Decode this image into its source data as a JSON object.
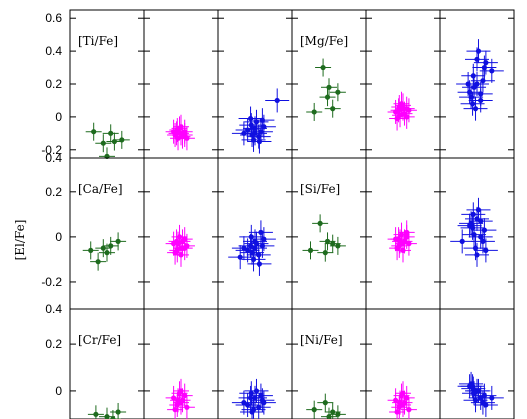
{
  "figure": {
    "ylabel": "[El/Fe]",
    "colors": {
      "green": "#1e6b1e",
      "magenta": "#ff00ff",
      "blue": "#1010e0",
      "frame": "#000000"
    }
  },
  "chart_data": [
    {
      "type": "scatter",
      "row_label": "[Ti/Fe]",
      "ylim": [
        -0.25,
        0.65
      ],
      "yticks": [
        "0.6",
        "0.4",
        "0.2",
        "0",
        "-0.2"
      ],
      "ytick_values": [
        0.6,
        0.4,
        0.2,
        0,
        -0.2
      ],
      "bottom_label": "0.4",
      "panels": [
        {
          "group": "left",
          "series": [
            {
              "color": "green",
              "points": [
                [
                  0.32,
                  -0.09
                ],
                [
                  0.55,
                  -0.1
                ],
                [
                  0.7,
                  -0.14
                ],
                [
                  0.45,
                  -0.16
                ],
                [
                  0.6,
                  -0.15
                ],
                [
                  0.5,
                  -0.24
                ]
              ]
            },
            {
              "color": "magenta",
              "points": [
                [
                  0.4,
                  -0.09
                ],
                [
                  0.5,
                  -0.1
                ],
                [
                  0.55,
                  -0.11
                ],
                [
                  0.45,
                  -0.08
                ],
                [
                  0.52,
                  -0.12
                ],
                [
                  0.48,
                  -0.07
                ],
                [
                  0.58,
                  -0.13
                ],
                [
                  0.42,
                  -0.11
                ],
                [
                  0.5,
                  -0.06
                ],
                [
                  0.46,
                  -0.13
                ],
                [
                  0.55,
                  -0.09
                ],
                [
                  0.44,
                  -0.1
                ]
              ]
            },
            {
              "color": "blue",
              "points": [
                [
                  0.35,
                  -0.1
                ],
                [
                  0.5,
                  -0.07
                ],
                [
                  0.55,
                  -0.12
                ],
                [
                  0.45,
                  -0.05
                ],
                [
                  0.6,
                  -0.02
                ],
                [
                  0.48,
                  -0.14
                ],
                [
                  0.4,
                  -0.08
                ],
                [
                  0.58,
                  -0.09
                ],
                [
                  0.52,
                  -0.03
                ],
                [
                  0.46,
                  -0.11
                ],
                [
                  0.62,
                  -0.06
                ],
                [
                  0.44,
                  -0.01
                ],
                [
                  0.8,
                  0.1
                ],
                [
                  0.56,
                  -0.15
                ],
                [
                  0.5,
                  -0.1
                ]
              ]
            }
          ]
        },
        {
          "group": "right",
          "series": [
            {
              "color": "green",
              "points": [
                [
                  0.3,
                  0.03
                ],
                [
                  0.42,
                  0.3
                ],
                [
                  0.5,
                  0.18
                ],
                [
                  0.62,
                  0.15
                ],
                [
                  0.55,
                  0.05
                ],
                [
                  0.48,
                  0.12
                ]
              ]
            },
            {
              "color": "magenta",
              "points": [
                [
                  0.4,
                  0.03
                ],
                [
                  0.5,
                  0.05
                ],
                [
                  0.55,
                  0.0
                ],
                [
                  0.45,
                  0.06
                ],
                [
                  0.52,
                  0.02
                ],
                [
                  0.48,
                  0.08
                ],
                [
                  0.58,
                  0.04
                ],
                [
                  0.42,
                  -0.01
                ],
                [
                  0.5,
                  0.07
                ],
                [
                  0.46,
                  0.01
                ],
                [
                  0.55,
                  0.05
                ],
                [
                  0.44,
                  0.04
                ]
              ]
            },
            {
              "color": "blue",
              "points": [
                [
                  0.4,
                  0.15
                ],
                [
                  0.5,
                  0.2
                ],
                [
                  0.55,
                  0.1
                ],
                [
                  0.45,
                  0.25
                ],
                [
                  0.6,
                  0.3
                ],
                [
                  0.48,
                  0.05
                ],
                [
                  0.42,
                  0.12
                ],
                [
                  0.58,
                  0.22
                ],
                [
                  0.52,
                  0.4
                ],
                [
                  0.46,
                  0.18
                ],
                [
                  0.62,
                  0.33
                ],
                [
                  0.44,
                  0.08
                ],
                [
                  0.7,
                  0.28
                ],
                [
                  0.55,
                  0.14
                ],
                [
                  0.5,
                  0.35
                ],
                [
                  0.38,
                  0.2
                ]
              ]
            }
          ]
        }
      ]
    },
    {
      "type": "scatter",
      "row_label": "[Ca/Fe]",
      "ylim": [
        -0.32,
        0.35
      ],
      "yticks": [
        "0.2",
        "0",
        "-0.2"
      ],
      "ytick_values": [
        0.2,
        0,
        -0.2
      ],
      "bottom_label": "0.4",
      "panels": [
        {
          "group": "left",
          "series": [
            {
              "color": "green",
              "points": [
                [
                  0.28,
                  -0.06
                ],
                [
                  0.45,
                  -0.05
                ],
                [
                  0.55,
                  -0.04
                ],
                [
                  0.65,
                  -0.02
                ],
                [
                  0.38,
                  -0.11
                ],
                [
                  0.5,
                  -0.07
                ]
              ]
            },
            {
              "color": "magenta",
              "points": [
                [
                  0.4,
                  -0.03
                ],
                [
                  0.5,
                  -0.05
                ],
                [
                  0.55,
                  -0.01
                ],
                [
                  0.45,
                  -0.06
                ],
                [
                  0.52,
                  -0.02
                ],
                [
                  0.48,
                  0.0
                ],
                [
                  0.58,
                  -0.04
                ],
                [
                  0.42,
                  -0.07
                ],
                [
                  0.5,
                  -0.08
                ],
                [
                  0.46,
                  -0.03
                ],
                [
                  0.55,
                  -0.05
                ],
                [
                  0.44,
                  -0.02
                ]
              ]
            },
            {
              "color": "blue",
              "points": [
                [
                  0.35,
                  -0.05
                ],
                [
                  0.5,
                  -0.02
                ],
                [
                  0.55,
                  -0.08
                ],
                [
                  0.45,
                  0.0
                ],
                [
                  0.6,
                  -0.04
                ],
                [
                  0.48,
                  -0.1
                ],
                [
                  0.4,
                  -0.06
                ],
                [
                  0.58,
                  0.02
                ],
                [
                  0.52,
                  -0.03
                ],
                [
                  0.46,
                  -0.07
                ],
                [
                  0.62,
                  -0.01
                ],
                [
                  0.44,
                  -0.04
                ],
                [
                  0.3,
                  -0.09
                ],
                [
                  0.56,
                  -0.12
                ],
                [
                  0.5,
                  -0.05
                ]
              ]
            }
          ]
        },
        {
          "group": "right",
          "series": [
            {
              "color": "green",
              "points": [
                [
                  0.25,
                  -0.06
                ],
                [
                  0.38,
                  0.06
                ],
                [
                  0.45,
                  -0.07
                ],
                [
                  0.55,
                  -0.03
                ],
                [
                  0.62,
                  -0.04
                ],
                [
                  0.48,
                  -0.02
                ]
              ]
            },
            {
              "color": "magenta",
              "points": [
                [
                  0.4,
                  -0.01
                ],
                [
                  0.5,
                  -0.03
                ],
                [
                  0.55,
                  0.0
                ],
                [
                  0.45,
                  -0.04
                ],
                [
                  0.52,
                  -0.02
                ],
                [
                  0.48,
                  0.01
                ],
                [
                  0.58,
                  -0.03
                ],
                [
                  0.42,
                  -0.05
                ],
                [
                  0.5,
                  -0.06
                ],
                [
                  0.46,
                  -0.02
                ],
                [
                  0.55,
                  0.02
                ],
                [
                  0.44,
                  -0.01
                ]
              ]
            },
            {
              "color": "blue",
              "points": [
                [
                  0.4,
                  0.05
                ],
                [
                  0.5,
                  0.08
                ],
                [
                  0.55,
                  0.0
                ],
                [
                  0.45,
                  0.1
                ],
                [
                  0.6,
                  0.03
                ],
                [
                  0.48,
                  -0.05
                ],
                [
                  0.42,
                  0.06
                ],
                [
                  0.58,
                  -0.02
                ],
                [
                  0.52,
                  0.12
                ],
                [
                  0.46,
                  0.01
                ],
                [
                  0.62,
                  -0.06
                ],
                [
                  0.44,
                  0.04
                ],
                [
                  0.3,
                  -0.02
                ],
                [
                  0.55,
                  0.07
                ],
                [
                  0.5,
                  -0.08
                ]
              ]
            }
          ]
        }
      ]
    },
    {
      "type": "scatter",
      "row_label": "[Cr/Fe]",
      "ylim": [
        -0.12,
        0.35
      ],
      "yticks": [
        "0.2",
        "0"
      ],
      "ytick_values": [
        0.2,
        0
      ],
      "bottom_label": "",
      "panels": [
        {
          "group": "left",
          "series": [
            {
              "color": "green",
              "points": [
                [
                  0.35,
                  -0.1
                ],
                [
                  0.5,
                  -0.11
                ],
                [
                  0.65,
                  -0.09
                ],
                [
                  0.58,
                  -0.12
                ]
              ]
            },
            {
              "color": "magenta",
              "points": [
                [
                  0.4,
                  -0.03
                ],
                [
                  0.5,
                  -0.05
                ],
                [
                  0.55,
                  -0.02
                ],
                [
                  0.45,
                  -0.06
                ],
                [
                  0.52,
                  -0.04
                ],
                [
                  0.48,
                  -0.01
                ],
                [
                  0.58,
                  -0.07
                ],
                [
                  0.42,
                  -0.08
                ],
                [
                  0.5,
                  0.0
                ],
                [
                  0.46,
                  -0.04
                ]
              ]
            },
            {
              "color": "blue",
              "points": [
                [
                  0.35,
                  -0.05
                ],
                [
                  0.5,
                  -0.03
                ],
                [
                  0.55,
                  -0.07
                ],
                [
                  0.45,
                  -0.01
                ],
                [
                  0.6,
                  -0.04
                ],
                [
                  0.48,
                  -0.08
                ],
                [
                  0.4,
                  -0.06
                ],
                [
                  0.58,
                  -0.02
                ],
                [
                  0.52,
                  0.0
                ],
                [
                  0.46,
                  -0.09
                ],
                [
                  0.62,
                  -0.05
                ],
                [
                  0.44,
                  -0.03
                ]
              ]
            }
          ]
        },
        {
          "group": "right",
          "series": [
            {
              "color": "green",
              "points": [
                [
                  0.3,
                  -0.08
                ],
                [
                  0.45,
                  -0.05
                ],
                [
                  0.55,
                  -0.09
                ],
                [
                  0.62,
                  -0.1
                ],
                [
                  0.5,
                  -0.11
                ]
              ]
            },
            {
              "color": "magenta",
              "points": [
                [
                  0.4,
                  -0.04
                ],
                [
                  0.5,
                  -0.06
                ],
                [
                  0.55,
                  -0.03
                ],
                [
                  0.45,
                  -0.07
                ],
                [
                  0.52,
                  -0.05
                ],
                [
                  0.48,
                  -0.02
                ],
                [
                  0.58,
                  -0.08
                ],
                [
                  0.42,
                  -0.09
                ],
                [
                  0.5,
                  -0.01
                ],
                [
                  0.46,
                  -0.05
                ]
              ]
            },
            {
              "color": "blue",
              "points": [
                [
                  0.4,
                  0.02
                ],
                [
                  0.5,
                  0.0
                ],
                [
                  0.55,
                  -0.03
                ],
                [
                  0.45,
                  0.01
                ],
                [
                  0.6,
                  -0.02
                ],
                [
                  0.48,
                  -0.04
                ],
                [
                  0.42,
                  0.03
                ],
                [
                  0.58,
                  -0.05
                ],
                [
                  0.52,
                  0.0
                ],
                [
                  0.46,
                  -0.01
                ],
                [
                  0.62,
                  -0.06
                ],
                [
                  0.44,
                  0.02
                ],
                [
                  0.7,
                  -0.03
                ]
              ]
            }
          ]
        }
      ]
    }
  ]
}
